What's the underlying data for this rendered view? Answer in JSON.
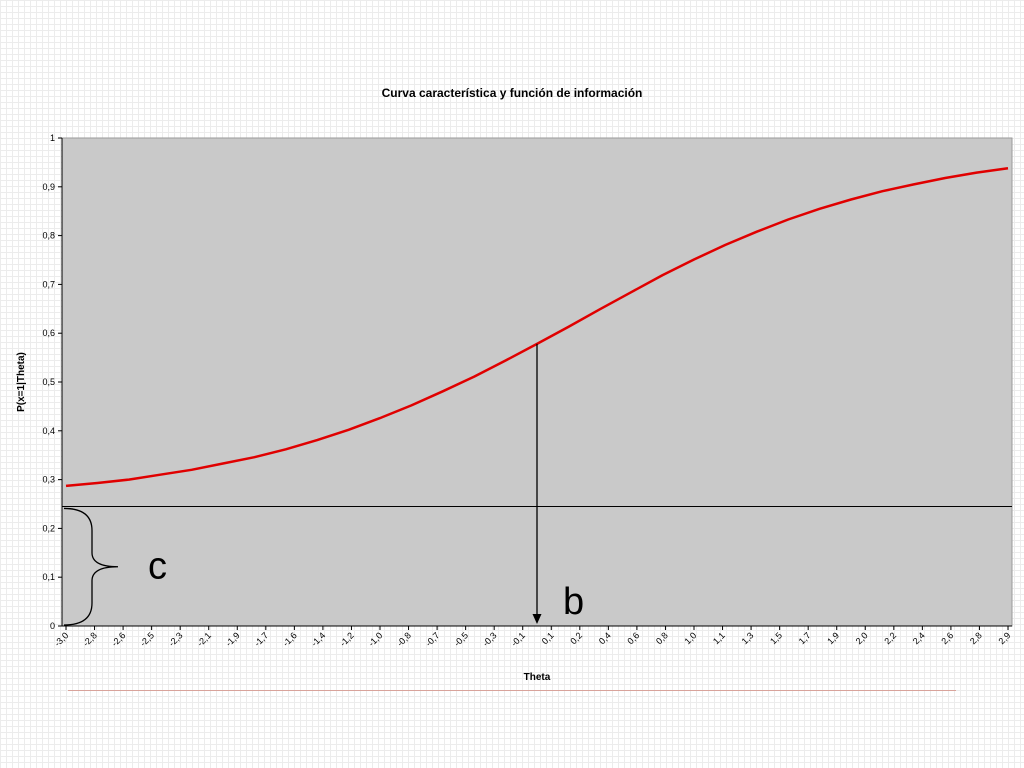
{
  "chart_data": {
    "type": "line",
    "title": "Curva característica y función de información",
    "xlabel": "Theta",
    "ylabel": "P(x=1|Theta)",
    "xlim": [
      -3.0,
      3.0
    ],
    "ylim": [
      0,
      1
    ],
    "grid": false,
    "plot_background": "#c9c9c9",
    "line_color": "#e00000",
    "x_tick_labels": [
      "-3,0",
      "-2,8",
      "-2,6",
      "-2,5",
      "-2,3",
      "-2,1",
      "-1,9",
      "-1,7",
      "-1,6",
      "-1,4",
      "-1,2",
      "-1,0",
      "-0,8",
      "-0,7",
      "-0,5",
      "-0,3",
      "-0,1",
      "0,1",
      "0,2",
      "0,4",
      "0,6",
      "0,8",
      "1,0",
      "1,1",
      "1,3",
      "1,5",
      "1,7",
      "1,9",
      "2,0",
      "2,2",
      "2,4",
      "2,6",
      "2,8",
      "2,9"
    ],
    "y_ticks": [
      0,
      0.1,
      0.2,
      0.3,
      0.4,
      0.5,
      0.6,
      0.7,
      0.8,
      0.9,
      1
    ],
    "y_tick_labels": [
      "0",
      "0,1",
      "0,2",
      "0,3",
      "0,4",
      "0,5",
      "0,6",
      "0,7",
      "0,8",
      "0,9",
      "1"
    ],
    "series": [
      {
        "x": [
          -3.0,
          -2.8,
          -2.6,
          -2.4,
          -2.2,
          -2.0,
          -1.8,
          -1.6,
          -1.4,
          -1.2,
          -1.0,
          -0.8,
          -0.6,
          -0.4,
          -0.2,
          0.0,
          0.2,
          0.4,
          0.6,
          0.8,
          1.0,
          1.2,
          1.4,
          1.6,
          1.8,
          2.0,
          2.2,
          2.4,
          2.6,
          2.8,
          3.0
        ],
        "y": [
          0.287,
          0.293,
          0.3,
          0.31,
          0.32,
          0.333,
          0.346,
          0.362,
          0.381,
          0.402,
          0.426,
          0.452,
          0.481,
          0.511,
          0.544,
          0.578,
          0.613,
          0.649,
          0.684,
          0.719,
          0.751,
          0.781,
          0.808,
          0.833,
          0.855,
          0.874,
          0.891,
          0.905,
          0.918,
          0.929,
          0.938
        ]
      }
    ],
    "annotations": {
      "c_level": 0.245,
      "b_theta": 0.0,
      "c_label": "c",
      "b_label": "b"
    }
  }
}
